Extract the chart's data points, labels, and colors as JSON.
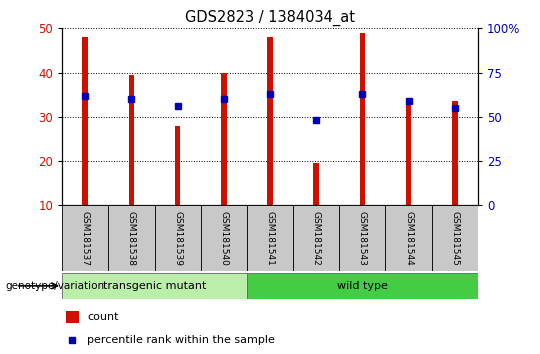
{
  "title": "GDS2823 / 1384034_at",
  "samples": [
    "GSM181537",
    "GSM181538",
    "GSM181539",
    "GSM181540",
    "GSM181541",
    "GSM181542",
    "GSM181543",
    "GSM181544",
    "GSM181545"
  ],
  "counts": [
    48,
    39.5,
    28,
    40,
    48,
    19.5,
    49,
    33,
    33.5
  ],
  "percentile_ranks_right": [
    62,
    60,
    56,
    60,
    63,
    48,
    63,
    59,
    55
  ],
  "ylim_left": [
    10,
    50
  ],
  "ylim_right": [
    0,
    100
  ],
  "yticks_left": [
    10,
    20,
    30,
    40,
    50
  ],
  "yticks_right": [
    0,
    25,
    50,
    75,
    100
  ],
  "ytick_labels_right": [
    "0",
    "25",
    "50",
    "75",
    "100%"
  ],
  "bar_color": "#CC1100",
  "dot_color": "#0000BB",
  "group_label": "genotype/variation",
  "groups": [
    {
      "label": "transgenic mutant",
      "start": 0,
      "end": 4,
      "color": "#BBEEAA"
    },
    {
      "label": "wild type",
      "start": 4,
      "end": 9,
      "color": "#44CC44"
    }
  ],
  "legend_count_label": "count",
  "legend_percentile_label": "percentile rank within the sample",
  "tick_label_color_left": "#CC1100",
  "tick_label_color_right": "#0000BB",
  "sample_box_color": "#C8C8C8",
  "bar_width": 0.12
}
